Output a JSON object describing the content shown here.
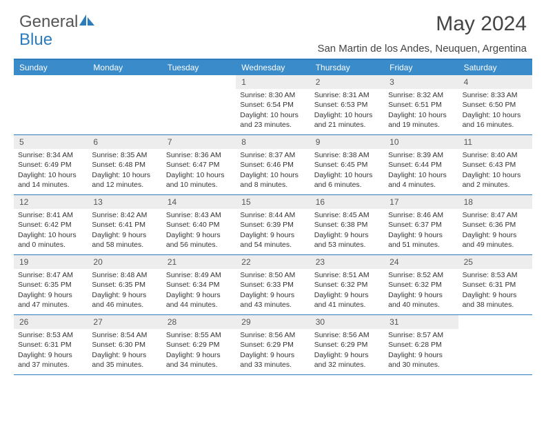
{
  "logo": {
    "text1": "General",
    "text2": "Blue"
  },
  "title": "May 2024",
  "location": "San Martin de los Andes, Neuquen, Argentina",
  "colors": {
    "header_bg": "#3a8bc9",
    "border": "#2b7bbd",
    "daynum_bg": "#ededed",
    "text": "#333333"
  },
  "weekdays": [
    "Sunday",
    "Monday",
    "Tuesday",
    "Wednesday",
    "Thursday",
    "Friday",
    "Saturday"
  ],
  "weeks": [
    [
      null,
      null,
      null,
      {
        "n": "1",
        "sr": "8:30 AM",
        "ss": "6:54 PM",
        "dl": "10 hours and 23 minutes."
      },
      {
        "n": "2",
        "sr": "8:31 AM",
        "ss": "6:53 PM",
        "dl": "10 hours and 21 minutes."
      },
      {
        "n": "3",
        "sr": "8:32 AM",
        "ss": "6:51 PM",
        "dl": "10 hours and 19 minutes."
      },
      {
        "n": "4",
        "sr": "8:33 AM",
        "ss": "6:50 PM",
        "dl": "10 hours and 16 minutes."
      }
    ],
    [
      {
        "n": "5",
        "sr": "8:34 AM",
        "ss": "6:49 PM",
        "dl": "10 hours and 14 minutes."
      },
      {
        "n": "6",
        "sr": "8:35 AM",
        "ss": "6:48 PM",
        "dl": "10 hours and 12 minutes."
      },
      {
        "n": "7",
        "sr": "8:36 AM",
        "ss": "6:47 PM",
        "dl": "10 hours and 10 minutes."
      },
      {
        "n": "8",
        "sr": "8:37 AM",
        "ss": "6:46 PM",
        "dl": "10 hours and 8 minutes."
      },
      {
        "n": "9",
        "sr": "8:38 AM",
        "ss": "6:45 PM",
        "dl": "10 hours and 6 minutes."
      },
      {
        "n": "10",
        "sr": "8:39 AM",
        "ss": "6:44 PM",
        "dl": "10 hours and 4 minutes."
      },
      {
        "n": "11",
        "sr": "8:40 AM",
        "ss": "6:43 PM",
        "dl": "10 hours and 2 minutes."
      }
    ],
    [
      {
        "n": "12",
        "sr": "8:41 AM",
        "ss": "6:42 PM",
        "dl": "10 hours and 0 minutes."
      },
      {
        "n": "13",
        "sr": "8:42 AM",
        "ss": "6:41 PM",
        "dl": "9 hours and 58 minutes."
      },
      {
        "n": "14",
        "sr": "8:43 AM",
        "ss": "6:40 PM",
        "dl": "9 hours and 56 minutes."
      },
      {
        "n": "15",
        "sr": "8:44 AM",
        "ss": "6:39 PM",
        "dl": "9 hours and 54 minutes."
      },
      {
        "n": "16",
        "sr": "8:45 AM",
        "ss": "6:38 PM",
        "dl": "9 hours and 53 minutes."
      },
      {
        "n": "17",
        "sr": "8:46 AM",
        "ss": "6:37 PM",
        "dl": "9 hours and 51 minutes."
      },
      {
        "n": "18",
        "sr": "8:47 AM",
        "ss": "6:36 PM",
        "dl": "9 hours and 49 minutes."
      }
    ],
    [
      {
        "n": "19",
        "sr": "8:47 AM",
        "ss": "6:35 PM",
        "dl": "9 hours and 47 minutes."
      },
      {
        "n": "20",
        "sr": "8:48 AM",
        "ss": "6:35 PM",
        "dl": "9 hours and 46 minutes."
      },
      {
        "n": "21",
        "sr": "8:49 AM",
        "ss": "6:34 PM",
        "dl": "9 hours and 44 minutes."
      },
      {
        "n": "22",
        "sr": "8:50 AM",
        "ss": "6:33 PM",
        "dl": "9 hours and 43 minutes."
      },
      {
        "n": "23",
        "sr": "8:51 AM",
        "ss": "6:32 PM",
        "dl": "9 hours and 41 minutes."
      },
      {
        "n": "24",
        "sr": "8:52 AM",
        "ss": "6:32 PM",
        "dl": "9 hours and 40 minutes."
      },
      {
        "n": "25",
        "sr": "8:53 AM",
        "ss": "6:31 PM",
        "dl": "9 hours and 38 minutes."
      }
    ],
    [
      {
        "n": "26",
        "sr": "8:53 AM",
        "ss": "6:31 PM",
        "dl": "9 hours and 37 minutes."
      },
      {
        "n": "27",
        "sr": "8:54 AM",
        "ss": "6:30 PM",
        "dl": "9 hours and 35 minutes."
      },
      {
        "n": "28",
        "sr": "8:55 AM",
        "ss": "6:29 PM",
        "dl": "9 hours and 34 minutes."
      },
      {
        "n": "29",
        "sr": "8:56 AM",
        "ss": "6:29 PM",
        "dl": "9 hours and 33 minutes."
      },
      {
        "n": "30",
        "sr": "8:56 AM",
        "ss": "6:29 PM",
        "dl": "9 hours and 32 minutes."
      },
      {
        "n": "31",
        "sr": "8:57 AM",
        "ss": "6:28 PM",
        "dl": "9 hours and 30 minutes."
      },
      null
    ]
  ],
  "labels": {
    "sunrise": "Sunrise: ",
    "sunset": "Sunset: ",
    "daylight": "Daylight: "
  }
}
